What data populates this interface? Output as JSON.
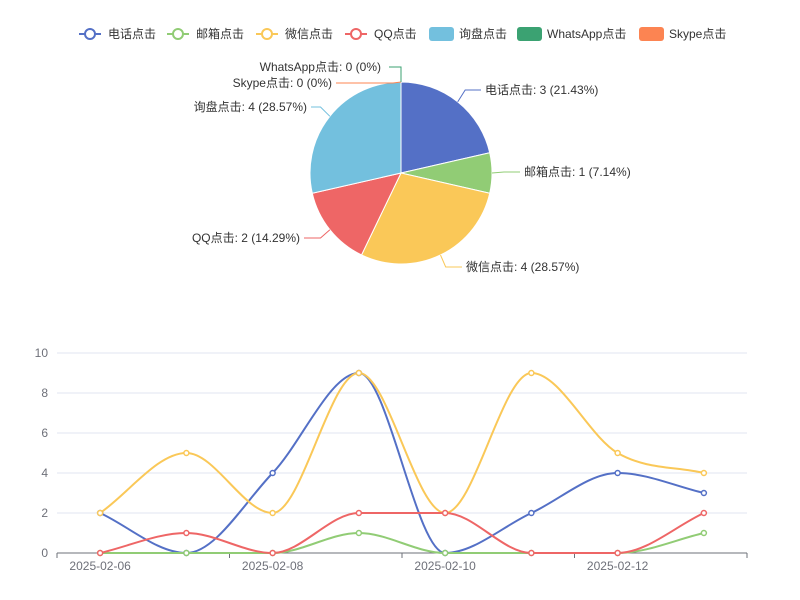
{
  "legend": [
    {
      "name": "电话点击",
      "color": "#5470c6",
      "icon": "line-circle"
    },
    {
      "name": "邮箱点击",
      "color": "#91cc75",
      "icon": "line-circle"
    },
    {
      "name": "微信点击",
      "color": "#fac858",
      "icon": "line-circle"
    },
    {
      "name": "QQ点击",
      "color": "#ee6666",
      "icon": "line-circle"
    },
    {
      "name": "询盘点击",
      "color": "#73c0de",
      "icon": "rect"
    },
    {
      "name": "WhatsApp点击",
      "color": "#3ba272",
      "icon": "rect"
    },
    {
      "name": "Skype点击",
      "color": "#fc8452",
      "icon": "rect"
    }
  ],
  "chart_data": [
    {
      "type": "pie",
      "slices": [
        {
          "name": "电话点击",
          "value": 3,
          "label": "电话点击: 3 (21.43%)",
          "color": "#5470c6"
        },
        {
          "name": "邮箱点击",
          "value": 1,
          "label": "邮箱点击: 1 (7.14%)",
          "color": "#91cc75"
        },
        {
          "name": "微信点击",
          "value": 4,
          "label": "微信点击: 4 (28.57%)",
          "color": "#fac858"
        },
        {
          "name": "QQ点击",
          "value": 2,
          "label": "QQ点击: 2 (14.29%)",
          "color": "#ee6666"
        },
        {
          "name": "Skype点击",
          "value": 0,
          "label": "Skype点击: 0 (0%)",
          "color": "#fc8452"
        },
        {
          "name": "WhatsApp点击",
          "value": 0,
          "label": "WhatsApp点击: 0 (0%)",
          "color": "#3ba272"
        },
        {
          "name": "询盘点击",
          "value": 4,
          "label": "询盘点击: 4 (28.57%)",
          "color": "#73c0de"
        }
      ]
    },
    {
      "type": "line",
      "smooth": true,
      "x": [
        "2025-02-06",
        "2025-02-07",
        "2025-02-08",
        "2025-02-09",
        "2025-02-10",
        "2025-02-11",
        "2025-02-12",
        "2025-02-13"
      ],
      "x_tick_labels": [
        "2025-02-06",
        "2025-02-08",
        "2025-02-10",
        "2025-02-12"
      ],
      "ylim": [
        0,
        10
      ],
      "y_ticks": [
        "0",
        "2",
        "4",
        "6",
        "8",
        "10"
      ],
      "grid": "horizontal",
      "series": [
        {
          "name": "电话点击",
          "color": "#5470c6",
          "values": [
            2,
            0,
            4,
            9,
            0,
            2,
            4,
            3
          ]
        },
        {
          "name": "邮箱点击",
          "color": "#91cc75",
          "values": [
            0,
            0,
            0,
            1,
            0,
            0,
            0,
            1
          ]
        },
        {
          "name": "微信点击",
          "color": "#fac858",
          "values": [
            2,
            5,
            2,
            9,
            2,
            9,
            5,
            4
          ]
        },
        {
          "name": "QQ点击",
          "color": "#ee6666",
          "values": [
            0,
            1,
            0,
            2,
            2,
            0,
            0,
            2
          ]
        }
      ]
    }
  ]
}
